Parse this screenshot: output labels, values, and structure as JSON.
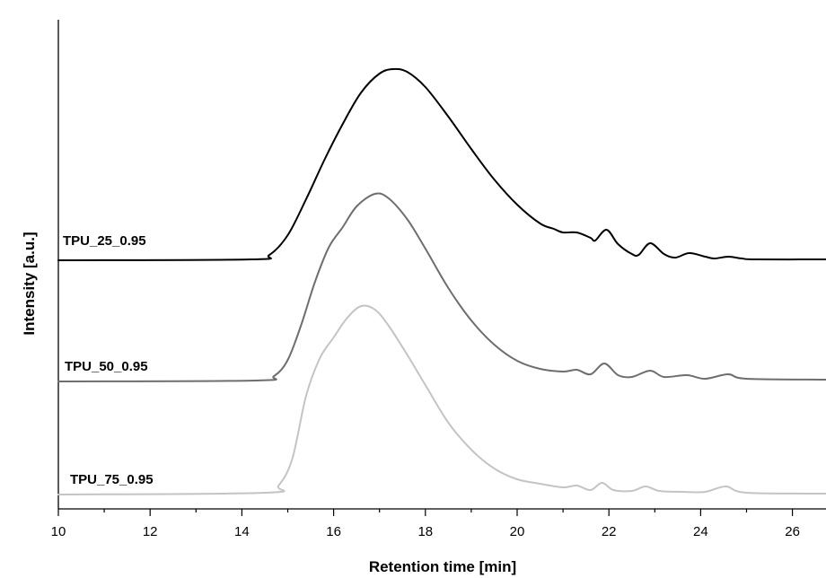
{
  "chart_data": {
    "type": "line",
    "title": "",
    "xlabel": "Retention time [min]",
    "ylabel": "Intensity [a.u.]",
    "xlim": [
      10,
      27
    ],
    "x_ticks": [
      "10",
      "12",
      "14",
      "16",
      "18",
      "20",
      "22",
      "24",
      "26"
    ],
    "y_ticks_labeled": false,
    "grid": false,
    "legend": "none",
    "series": [
      {
        "name": "TPU_25_0.95",
        "color": "#000000",
        "baseline": 290,
        "x": [
          10,
          14.2,
          14.6,
          15.0,
          15.4,
          15.8,
          16.2,
          16.6,
          17.0,
          17.3,
          17.6,
          18.0,
          18.5,
          19.0,
          19.5,
          20.0,
          20.5,
          20.8,
          21.0,
          21.3,
          21.6,
          21.7,
          21.95,
          22.2,
          22.5,
          22.65,
          22.9,
          23.2,
          23.45,
          23.75,
          24.1,
          24.3,
          24.6,
          24.9,
          25.2,
          27
        ],
        "y": [
          0,
          1,
          6,
          28,
          68,
          112,
          152,
          187,
          208,
          213,
          210,
          193,
          160,
          124,
          90,
          62,
          41,
          35,
          31,
          31,
          25,
          22,
          34,
          18,
          7,
          6,
          19,
          7,
          3,
          8,
          4,
          2,
          4,
          2,
          1,
          1
        ]
      },
      {
        "name": "TPU_50_0.95",
        "color": "#6e6e6e",
        "baseline": 425,
        "x": [
          10,
          14.3,
          14.7,
          15.0,
          15.3,
          15.6,
          15.9,
          16.2,
          16.5,
          16.9,
          17.2,
          17.6,
          18.0,
          18.5,
          19.0,
          19.5,
          20.0,
          20.5,
          21.0,
          21.3,
          21.6,
          21.9,
          22.2,
          22.5,
          22.9,
          23.2,
          23.7,
          24.1,
          24.6,
          25.0,
          27
        ],
        "y": [
          0,
          1,
          6,
          24,
          64,
          112,
          150,
          172,
          195,
          209,
          204,
          181,
          148,
          104,
          68,
          41,
          23,
          14,
          11,
          13,
          8,
          20,
          7,
          5,
          12,
          5,
          7,
          3,
          8,
          3,
          2
        ]
      },
      {
        "name": "TPU_75_0.95",
        "color": "#c4c4c4",
        "baseline": 551,
        "x": [
          10,
          14.5,
          14.8,
          15.1,
          15.4,
          15.7,
          16.0,
          16.3,
          16.6,
          16.9,
          17.2,
          17.6,
          18.0,
          18.5,
          19.0,
          19.5,
          20.0,
          20.5,
          21.0,
          21.3,
          21.6,
          21.85,
          22.1,
          22.5,
          22.8,
          23.1,
          23.6,
          24.1,
          24.55,
          25.0,
          27
        ],
        "y": [
          0,
          2,
          10,
          40,
          110,
          152,
          175,
          197,
          210,
          206,
          188,
          156,
          122,
          80,
          50,
          29,
          17,
          12,
          8,
          10,
          5,
          13,
          5,
          4,
          9,
          4,
          3,
          3,
          9,
          2,
          1
        ]
      }
    ]
  }
}
